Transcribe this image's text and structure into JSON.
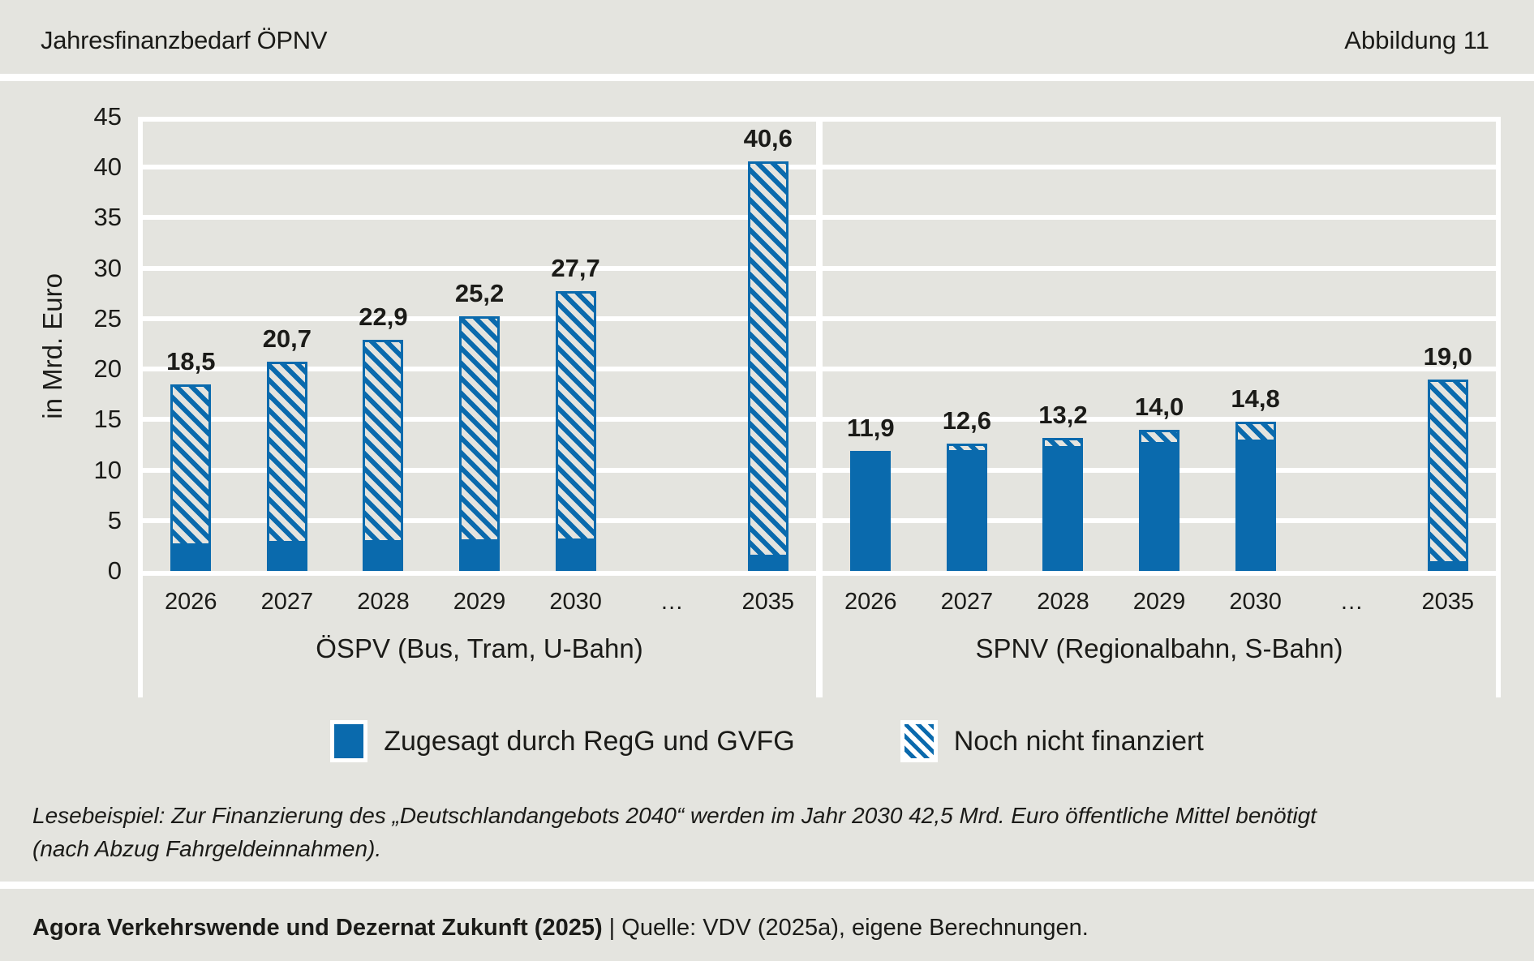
{
  "header": {
    "title": "Jahresfinanzbedarf ÖPNV",
    "figure_label": "Abbildung 11"
  },
  "colors": {
    "bar_blue": "#0a6aad",
    "page_background": "#e4e4df",
    "gridline": "#ffffff"
  },
  "chart_data": {
    "type": "bar",
    "stacked": true,
    "unit": "Mrd. Euro",
    "ylabel": "in Mrd. Euro",
    "ylim": [
      0,
      45
    ],
    "ytick_step": 5,
    "yticks": [
      45,
      40,
      35,
      30,
      25,
      20,
      15,
      10,
      5,
      0
    ],
    "series": [
      {
        "name": "Zugesagt durch RegG und GVFG",
        "key": "committed",
        "style": "solid"
      },
      {
        "name": "Noch nicht finanziert",
        "key": "unfunded",
        "style": "hatched"
      }
    ],
    "groups": [
      {
        "label": "ÖSPV (Bus, Tram, U-Bahn)",
        "bars": [
          {
            "category": "2026",
            "committed": 2.5,
            "unfunded": 16.0,
            "total": 18.5,
            "label": "18,5"
          },
          {
            "category": "2027",
            "committed": 2.7,
            "unfunded": 18.0,
            "total": 20.7,
            "label": "20,7"
          },
          {
            "category": "2028",
            "committed": 2.8,
            "unfunded": 20.1,
            "total": 22.9,
            "label": "22,9"
          },
          {
            "category": "2029",
            "committed": 2.9,
            "unfunded": 22.3,
            "total": 25.2,
            "label": "25,2"
          },
          {
            "category": "2030",
            "committed": 3.0,
            "unfunded": 24.7,
            "total": 27.7,
            "label": "27,7"
          },
          {
            "category": "…",
            "committed": null,
            "unfunded": null,
            "total": null,
            "label": ""
          },
          {
            "category": "2035",
            "committed": 1.4,
            "unfunded": 39.2,
            "total": 40.6,
            "label": "40,6"
          }
        ]
      },
      {
        "label": "SPNV (Regionalbahn, S-Bahn)",
        "bars": [
          {
            "category": "2026",
            "committed": 11.6,
            "unfunded": 0.3,
            "total": 11.9,
            "label": "11,9"
          },
          {
            "category": "2027",
            "committed": 11.7,
            "unfunded": 0.9,
            "total": 12.6,
            "label": "12,6"
          },
          {
            "category": "2028",
            "committed": 12.1,
            "unfunded": 1.1,
            "total": 13.2,
            "label": "13,2"
          },
          {
            "category": "2029",
            "committed": 12.5,
            "unfunded": 1.5,
            "total": 14.0,
            "label": "14,0"
          },
          {
            "category": "2030",
            "committed": 12.8,
            "unfunded": 2.0,
            "total": 14.8,
            "label": "14,8"
          },
          {
            "category": "…",
            "committed": null,
            "unfunded": null,
            "total": null,
            "label": ""
          },
          {
            "category": "2035",
            "committed": 0.7,
            "unfunded": 18.3,
            "total": 19.0,
            "label": "19,0"
          }
        ]
      }
    ]
  },
  "legend": {
    "items": [
      {
        "swatch": "solid",
        "label": "Zugesagt durch RegG und GVFG"
      },
      {
        "swatch": "hatched",
        "label": "Noch nicht finanziert"
      }
    ]
  },
  "footnote": {
    "lines": [
      "Lesebeispiel: Zur Finanzierung des „Deutschlandangebots 2040“ werden im Jahr 2030 42,5 Mrd. Euro öffentliche Mittel benötigt",
      "(nach Abzug Fahrgeldeinnahmen)."
    ]
  },
  "source": {
    "bold": "Agora Verkehrswende und Dezernat Zukunft (2025)",
    "rest": " | Quelle: VDV (2025a), eigene Berechnungen."
  }
}
